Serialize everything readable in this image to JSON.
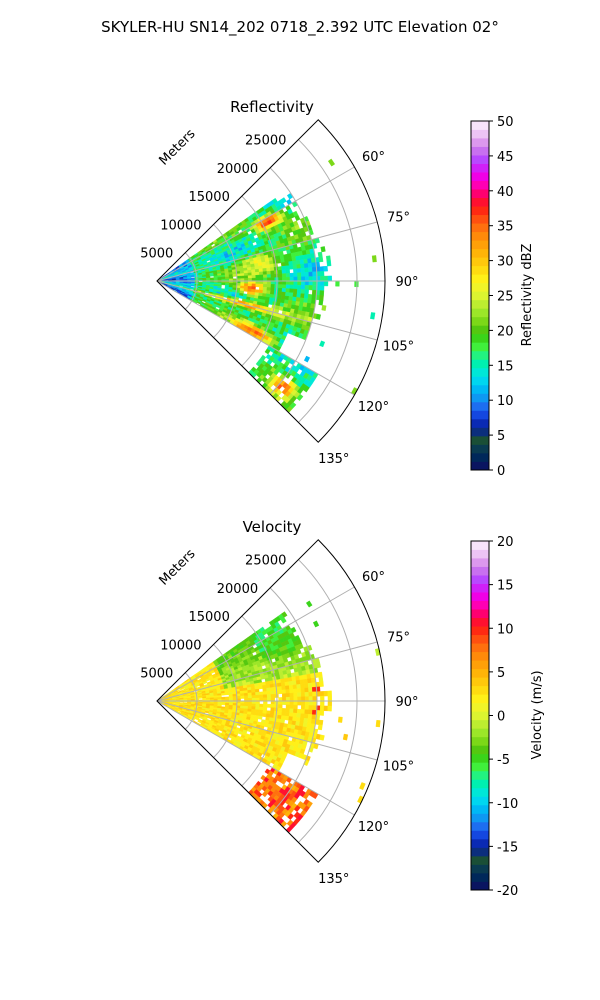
{
  "figure": {
    "suptitle": "SKYLER-HU  SN14_202  0718_2.392 UTC Elevation 02°"
  },
  "chart_data": [
    {
      "type": "heatmap",
      "projection": "polar-sector",
      "title": "Reflectivity",
      "range_label": "Meters",
      "range_ticks": [
        5000,
        10000,
        15000,
        20000,
        25000
      ],
      "range_max": 28500,
      "angle_ticks": [
        "60°",
        "75°",
        "90°",
        "105°",
        "120°",
        "135°"
      ],
      "angle_range_deg": [
        45,
        135
      ],
      "grid": true,
      "colorbar": {
        "label": "Reflectivity dBZ",
        "min": 0,
        "max": 50,
        "ticks": [
          0,
          5,
          10,
          15,
          20,
          25,
          30,
          35,
          40,
          45,
          50
        ],
        "colors": [
          "#0a1560",
          "#00285a",
          "#0a3b50",
          "#1a4f36",
          "#0b2e7c",
          "#0a2ab4",
          "#1447e0",
          "#1d6ef0",
          "#0e98f2",
          "#00b8f5",
          "#00d6f0",
          "#00e8d8",
          "#00f0b0",
          "#22f280",
          "#40ef3c",
          "#3ad41a",
          "#54c810",
          "#7cd818",
          "#9ce628",
          "#bcee30",
          "#dcf430",
          "#f0f428",
          "#fff018",
          "#ffdc10",
          "#ffc80c",
          "#ffb408",
          "#ffa008",
          "#ff8a0a",
          "#ff700e",
          "#ff5010",
          "#ff2a12",
          "#ff1030",
          "#ff0070",
          "#ff00b4",
          "#f000e6",
          "#d020f8",
          "#b848ff",
          "#c870f0",
          "#dc98ee",
          "#ecc4f4",
          "#f8e4fa"
        ]
      }
    },
    {
      "type": "heatmap",
      "projection": "polar-sector",
      "title": "Velocity",
      "range_label": "Meters",
      "range_ticks": [
        5000,
        10000,
        15000,
        20000,
        25000
      ],
      "range_max": 28500,
      "angle_ticks": [
        "60°",
        "75°",
        "90°",
        "105°",
        "120°",
        "135°"
      ],
      "angle_range_deg": [
        45,
        135
      ],
      "grid": true,
      "colorbar": {
        "label": "Velocity (m/s)",
        "min": -20,
        "max": 20,
        "ticks": [
          -20,
          -15,
          -10,
          -5,
          0,
          5,
          10,
          15,
          20
        ],
        "colors": [
          "#0a1560",
          "#00285a",
          "#0a3b50",
          "#1a4f36",
          "#0b2e7c",
          "#0a2ab4",
          "#1447e0",
          "#1d6ef0",
          "#0e98f2",
          "#00b8f5",
          "#00d6f0",
          "#00e8d8",
          "#00f0b0",
          "#22f280",
          "#40ef3c",
          "#3ad41a",
          "#54c810",
          "#7cd818",
          "#9ce628",
          "#bcee30",
          "#dcf430",
          "#f0f428",
          "#fff018",
          "#ffdc10",
          "#ffc80c",
          "#ffb408",
          "#ffa008",
          "#ff8a0a",
          "#ff700e",
          "#ff5010",
          "#ff2a12",
          "#ff1030",
          "#ff0070",
          "#ff00b4",
          "#f000e6",
          "#d020f8",
          "#b848ff",
          "#c870f0",
          "#dc98ee",
          "#ecc4f4",
          "#f8e4fa"
        ]
      }
    }
  ]
}
